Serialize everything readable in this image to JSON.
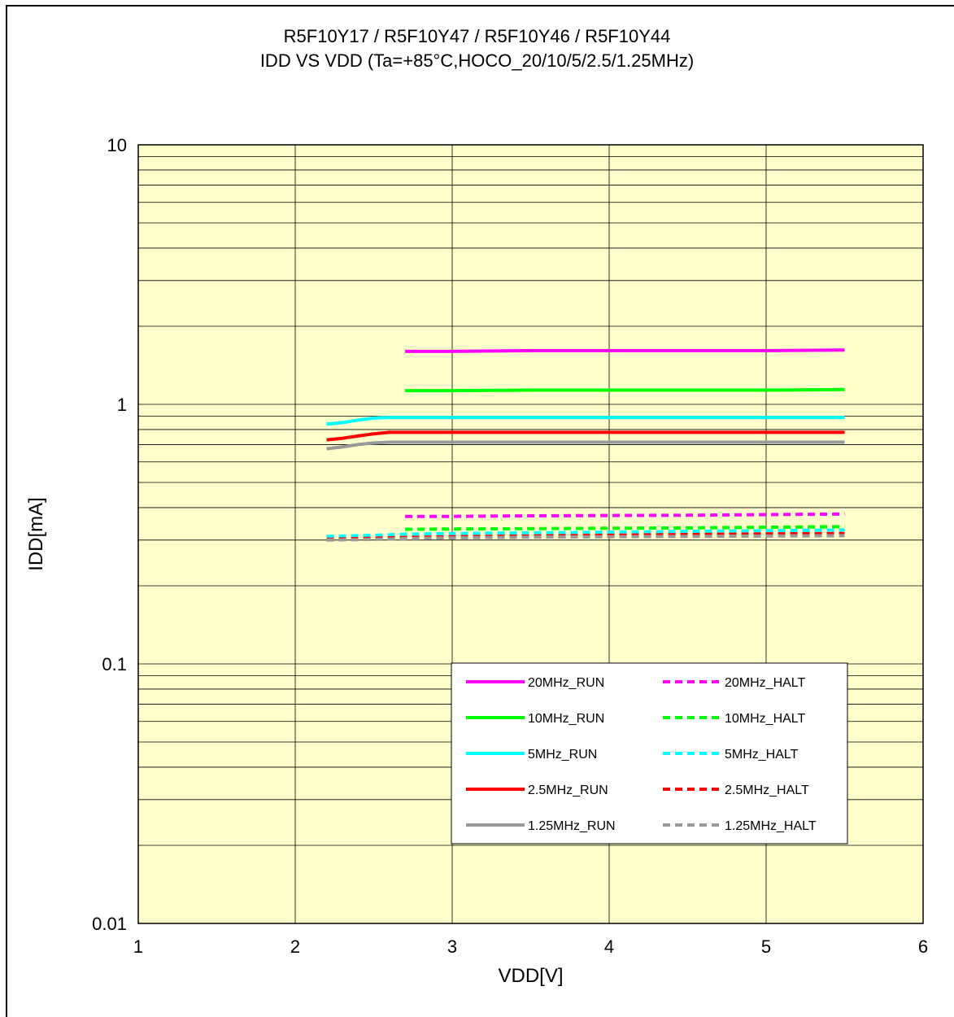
{
  "chart_data": {
    "type": "line",
    "title": "R5F10Y17 / R5F10Y47 / R5F10Y46 / R5F10Y44",
    "subtitle": "IDD VS VDD (Ta=+85°C,HOCO_20/10/5/2.5/1.25MHz)",
    "xlabel": "VDD[V]",
    "ylabel": "IDD[mA]",
    "xlim": [
      1,
      6
    ],
    "ylim": [
      0.01,
      10
    ],
    "yscale": "log",
    "x_ticks": [
      "1",
      "2",
      "3",
      "4",
      "5",
      "6"
    ],
    "y_ticks": [
      "0.01",
      "0.1",
      "1",
      "10"
    ],
    "grid": true,
    "legend_position": "bottom-right",
    "plot_background": "#FFFFCC",
    "series": [
      {
        "name": "20MHz_RUN",
        "color": "#FF00FF",
        "style": "solid",
        "x": [
          2.7,
          3.0,
          3.5,
          4.0,
          4.5,
          5.0,
          5.5
        ],
        "y": [
          1.6,
          1.6,
          1.61,
          1.61,
          1.61,
          1.61,
          1.62
        ]
      },
      {
        "name": "20MHz_HALT",
        "color": "#FF00FF",
        "style": "dashed",
        "x": [
          2.7,
          3.0,
          3.5,
          4.0,
          4.5,
          5.0,
          5.5
        ],
        "y": [
          0.37,
          0.37,
          0.372,
          0.373,
          0.374,
          0.376,
          0.378
        ]
      },
      {
        "name": "10MHz_RUN",
        "color": "#00FF00",
        "style": "solid",
        "x": [
          2.7,
          3.0,
          3.5,
          4.0,
          4.5,
          5.0,
          5.5
        ],
        "y": [
          1.13,
          1.13,
          1.135,
          1.135,
          1.135,
          1.135,
          1.14
        ]
      },
      {
        "name": "10MHz_HALT",
        "color": "#00FF00",
        "style": "dashed",
        "x": [
          2.7,
          3.0,
          3.5,
          4.0,
          4.5,
          5.0,
          5.5
        ],
        "y": [
          0.33,
          0.331,
          0.332,
          0.333,
          0.334,
          0.336,
          0.338
        ]
      },
      {
        "name": "5MHz_RUN",
        "color": "#00FFFF",
        "style": "solid",
        "x": [
          2.2,
          2.3,
          2.4,
          2.5,
          2.6,
          3.0,
          3.5,
          4.0,
          4.5,
          5.0,
          5.5
        ],
        "y": [
          0.84,
          0.85,
          0.87,
          0.885,
          0.89,
          0.89,
          0.89,
          0.89,
          0.89,
          0.89,
          0.89
        ]
      },
      {
        "name": "5MHz_HALT",
        "color": "#00FFFF",
        "style": "dashed",
        "x": [
          2.2,
          2.5,
          2.7,
          3.0,
          3.5,
          4.0,
          4.5,
          5.0,
          5.5
        ],
        "y": [
          0.31,
          0.313,
          0.316,
          0.318,
          0.32,
          0.322,
          0.324,
          0.326,
          0.328
        ]
      },
      {
        "name": "2.5MHz_RUN",
        "color": "#FF0000",
        "style": "solid",
        "x": [
          2.2,
          2.3,
          2.4,
          2.5,
          2.6,
          3.0,
          3.5,
          4.0,
          4.5,
          5.0,
          5.5
        ],
        "y": [
          0.73,
          0.74,
          0.755,
          0.77,
          0.78,
          0.78,
          0.78,
          0.78,
          0.78,
          0.78,
          0.78
        ]
      },
      {
        "name": "2.5MHz_HALT",
        "color": "#FF0000",
        "style": "dashed",
        "x": [
          2.2,
          2.5,
          2.7,
          3.0,
          3.5,
          4.0,
          4.5,
          5.0,
          5.5
        ],
        "y": [
          0.302,
          0.305,
          0.307,
          0.309,
          0.311,
          0.313,
          0.315,
          0.317,
          0.318
        ]
      },
      {
        "name": "1.25MHz_RUN",
        "color": "#999999",
        "style": "solid",
        "x": [
          2.2,
          2.3,
          2.4,
          2.5,
          2.6,
          3.0,
          3.5,
          4.0,
          4.5,
          5.0,
          5.5
        ],
        "y": [
          0.675,
          0.685,
          0.7,
          0.71,
          0.715,
          0.715,
          0.715,
          0.715,
          0.715,
          0.715,
          0.715
        ]
      },
      {
        "name": "1.25MHz_HALT",
        "color": "#999999",
        "style": "dashed",
        "x": [
          2.2,
          2.5,
          2.7,
          3.0,
          3.5,
          4.0,
          4.5,
          5.0,
          5.5
        ],
        "y": [
          0.3,
          0.302,
          0.304,
          0.306,
          0.308,
          0.309,
          0.31,
          0.311,
          0.312
        ]
      }
    ]
  }
}
